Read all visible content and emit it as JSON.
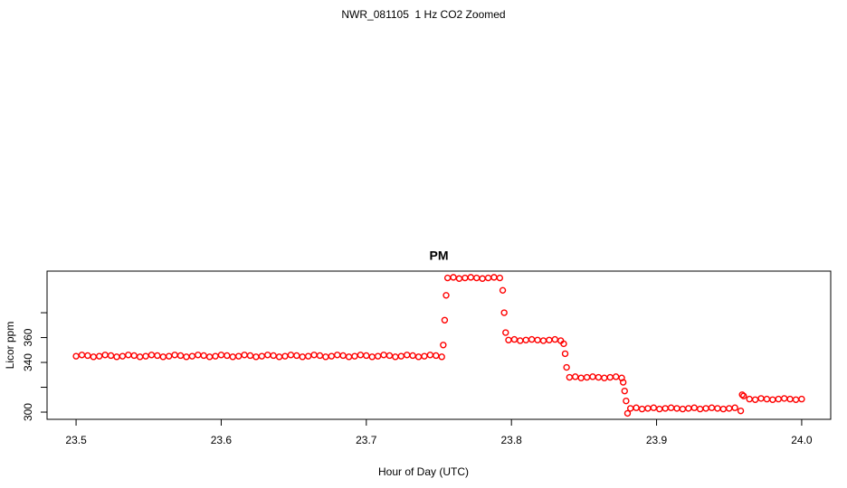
{
  "chart_data": {
    "type": "scatter",
    "suptitle": "NWR_081105  1 Hz CO2 Zoomed",
    "title": "PM",
    "xlabel": "Hour of Day (UTC)",
    "ylabel": "Licor ppm",
    "marker": "open-circle",
    "color": "#ff0000",
    "xlim": [
      23.48,
      24.02
    ],
    "ylim": [
      294.2,
      413.5
    ],
    "xticks": [
      23.5,
      23.6,
      23.7,
      23.8,
      23.9,
      {
        "value": 24,
        "label": "24.0"
      }
    ],
    "yticks": [
      300,
      340,
      360
    ],
    "yticks_unlabeled": [
      320,
      380
    ],
    "x": [
      23.5,
      23.504,
      23.508,
      23.512,
      23.516,
      23.52,
      23.524,
      23.528,
      23.532,
      23.536,
      23.54,
      23.544,
      23.548,
      23.552,
      23.556,
      23.56,
      23.564,
      23.568,
      23.572,
      23.576,
      23.58,
      23.584,
      23.588,
      23.592,
      23.596,
      23.6,
      23.604,
      23.608,
      23.612,
      23.616,
      23.62,
      23.624,
      23.628,
      23.632,
      23.636,
      23.64,
      23.644,
      23.648,
      23.652,
      23.656,
      23.66,
      23.664,
      23.668,
      23.672,
      23.676,
      23.68,
      23.684,
      23.688,
      23.692,
      23.696,
      23.7,
      23.704,
      23.708,
      23.712,
      23.716,
      23.72,
      23.724,
      23.728,
      23.732,
      23.736,
      23.74,
      23.744,
      23.748,
      23.752,
      23.753,
      23.754,
      23.755,
      23.756,
      23.76,
      23.764,
      23.768,
      23.772,
      23.776,
      23.78,
      23.784,
      23.788,
      23.792,
      23.794,
      23.795,
      23.796,
      23.798,
      23.802,
      23.806,
      23.81,
      23.814,
      23.818,
      23.822,
      23.826,
      23.83,
      23.834,
      23.836,
      23.837,
      23.838,
      23.84,
      23.844,
      23.848,
      23.852,
      23.856,
      23.86,
      23.864,
      23.868,
      23.872,
      23.876,
      23.877,
      23.878,
      23.879,
      23.88,
      23.882,
      23.886,
      23.89,
      23.894,
      23.898,
      23.902,
      23.906,
      23.91,
      23.914,
      23.918,
      23.922,
      23.926,
      23.93,
      23.934,
      23.938,
      23.942,
      23.946,
      23.95,
      23.954,
      23.958,
      23.959,
      23.96,
      23.964,
      23.968,
      23.972,
      23.976,
      23.98,
      23.984,
      23.988,
      23.992,
      23.996,
      24.0
    ],
    "values": [
      345,
      346,
      345.5,
      344.5,
      345,
      346,
      345.5,
      344.5,
      345,
      346,
      345.5,
      344.5,
      345,
      346,
      345.5,
      344.5,
      345,
      346,
      345.5,
      344.5,
      345,
      346,
      345.5,
      344.5,
      345,
      346,
      345.5,
      344.5,
      345,
      346,
      345.5,
      344.5,
      345,
      346,
      345.5,
      344.5,
      345,
      346,
      345.5,
      344.5,
      345,
      346,
      345.5,
      344.5,
      345,
      346,
      345.5,
      344.5,
      345,
      346,
      345.5,
      344.5,
      345,
      346,
      345.5,
      344.5,
      345,
      346,
      345.5,
      344.5,
      345,
      346,
      345.5,
      344.5,
      354,
      374,
      394,
      408,
      408.5,
      407.5,
      408,
      408.5,
      408,
      407.5,
      408,
      408.5,
      408,
      398,
      380,
      364,
      358,
      358.5,
      357.5,
      358,
      358.5,
      358,
      357.5,
      358,
      358.5,
      357.5,
      355,
      347,
      336,
      328,
      328.5,
      327.5,
      328,
      328.5,
      328,
      327.5,
      328,
      328.5,
      327.5,
      324,
      317,
      309,
      299,
      303,
      303.5,
      302.5,
      303,
      303.5,
      302.5,
      303,
      303.5,
      303,
      302.5,
      303,
      303.5,
      302.5,
      303,
      303.5,
      303,
      302.5,
      303,
      303.5,
      301,
      314,
      313,
      310.5,
      310,
      311,
      310.5,
      310,
      310.5,
      311,
      310.5,
      310,
      310.5
    ]
  }
}
